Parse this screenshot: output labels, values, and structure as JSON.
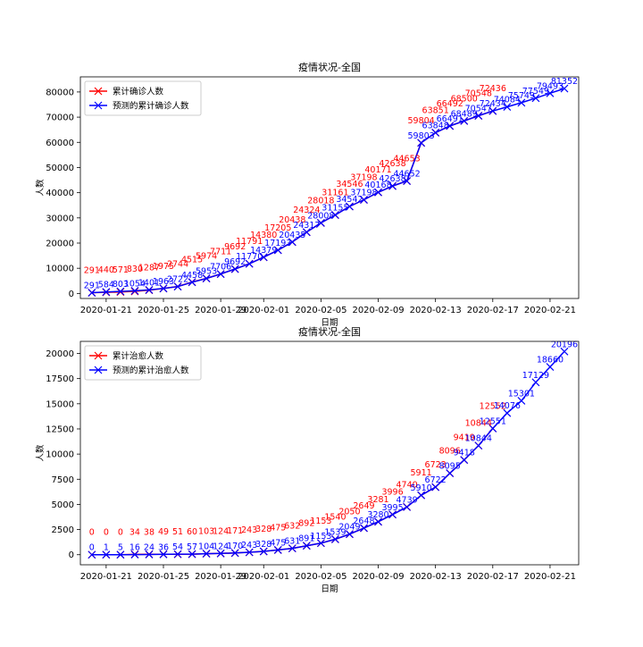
{
  "chart_data": [
    {
      "type": "line",
      "title": "疫情状况-全国",
      "xlabel": "日期",
      "ylabel": "人数",
      "ylim": [
        -2000,
        86000
      ],
      "yticks": [
        0,
        10000,
        20000,
        30000,
        40000,
        50000,
        60000,
        70000,
        80000
      ],
      "xtick_labels": [
        "2020-01-21",
        "2020-01-25",
        "2020-01-29",
        "2020-02-01",
        "2020-02-05",
        "2020-02-09",
        "2020-02-13",
        "2020-02-17",
        "2020-02-21"
      ],
      "grid": false,
      "legend_position": "top-left",
      "series": [
        {
          "name": "累计确诊人数",
          "color": "#ff0000",
          "marker": "x",
          "dates": [
            "2020-01-20",
            "2020-01-21",
            "2020-01-22",
            "2020-01-23",
            "2020-01-24",
            "2020-01-25",
            "2020-01-26",
            "2020-01-27",
            "2020-01-28",
            "2020-01-29",
            "2020-01-30",
            "2020-01-31",
            "2020-02-01",
            "2020-02-02",
            "2020-02-03",
            "2020-02-04",
            "2020-02-05",
            "2020-02-06",
            "2020-02-07",
            "2020-02-08",
            "2020-02-09",
            "2020-02-10",
            "2020-02-11",
            "2020-02-12",
            "2020-02-13",
            "2020-02-14",
            "2020-02-15",
            "2020-02-16",
            "2020-02-17"
          ],
          "values": [
            291,
            440,
            571,
            830,
            1287,
            1975,
            2744,
            4515,
            5974,
            7711,
            9692,
            11791,
            14380,
            17205,
            20438,
            24324,
            28018,
            31161,
            34546,
            37198,
            40171,
            42638,
            44653,
            59804,
            63851,
            66492,
            68500,
            70548,
            72436
          ],
          "labels": [
            "291",
            "440",
            "571",
            "830",
            "1287",
            "1975",
            "2744",
            "4515",
            "5974",
            "7711",
            "9692",
            "11791",
            "14380",
            "17205",
            "20438",
            "24324",
            "28018",
            "31161",
            "34546",
            "37198",
            "40171",
            "42638",
            "44653",
            "59804",
            "63851",
            "66492",
            "68500",
            "70548",
            "72436"
          ]
        },
        {
          "name": "预测的累计确诊人数",
          "color": "#0000ff",
          "marker": "x",
          "dates": [
            "2020-01-20",
            "2020-01-21",
            "2020-01-22",
            "2020-01-23",
            "2020-01-24",
            "2020-01-25",
            "2020-01-26",
            "2020-01-27",
            "2020-01-28",
            "2020-01-29",
            "2020-01-30",
            "2020-01-31",
            "2020-02-01",
            "2020-02-02",
            "2020-02-03",
            "2020-02-04",
            "2020-02-05",
            "2020-02-06",
            "2020-02-07",
            "2020-02-08",
            "2020-02-09",
            "2020-02-10",
            "2020-02-11",
            "2020-02-12",
            "2020-02-13",
            "2020-02-14",
            "2020-02-15",
            "2020-02-16",
            "2020-02-17",
            "2020-02-18",
            "2020-02-19",
            "2020-02-20",
            "2020-02-21",
            "2020-02-22"
          ],
          "values": [
            291,
            584,
            803,
            1054,
            1401,
            1963,
            2722,
            4458,
            5953,
            7706,
            9692,
            11770,
            14379,
            17193,
            20435,
            24317,
            28008,
            31155,
            34542,
            37198,
            40168,
            42638,
            44652,
            59803,
            63848,
            66491,
            68489,
            70547,
            72434,
            74084,
            75749,
            77549,
            79493,
            81352
          ],
          "labels": [
            "291",
            "584",
            "803",
            "1054",
            "1401",
            "1963",
            "2722",
            "4458",
            "5953",
            "7706",
            "9692",
            "11770",
            "14379",
            "17193",
            "20435",
            "24317",
            "28008",
            "31155",
            "34542",
            "37198",
            "40168",
            "42638",
            "44652",
            "59803",
            "63848",
            "66491",
            "68489",
            "70547",
            "72434",
            "74084",
            "75749",
            "77549",
            "79493",
            "81352"
          ]
        }
      ]
    },
    {
      "type": "line",
      "title": "疫情状况-全国",
      "xlabel": "日期",
      "ylabel": "人数",
      "ylim": [
        -1000,
        21200
      ],
      "yticks": [
        0,
        2500,
        5000,
        7500,
        10000,
        12500,
        15000,
        17500,
        20000
      ],
      "ytick_labels": [
        "0",
        "2500",
        "5000",
        "7500",
        "10000",
        "12500",
        "15000",
        "17500",
        "20000"
      ],
      "xtick_labels": [
        "2020-01-21",
        "2020-01-25",
        "2020-01-29",
        "2020-02-01",
        "2020-02-05",
        "2020-02-09",
        "2020-02-13",
        "2020-02-17",
        "2020-02-21"
      ],
      "grid": false,
      "legend_position": "top-left",
      "series": [
        {
          "name": "累计治愈人数",
          "color": "#ff0000",
          "marker": "x",
          "dates": [
            "2020-01-20",
            "2020-01-21",
            "2020-01-22",
            "2020-01-23",
            "2020-01-24",
            "2020-01-25",
            "2020-01-26",
            "2020-01-27",
            "2020-01-28",
            "2020-01-29",
            "2020-01-30",
            "2020-01-31",
            "2020-02-01",
            "2020-02-02",
            "2020-02-03",
            "2020-02-04",
            "2020-02-05",
            "2020-02-06",
            "2020-02-07",
            "2020-02-08",
            "2020-02-09",
            "2020-02-10",
            "2020-02-11",
            "2020-02-12",
            "2020-02-13",
            "2020-02-14",
            "2020-02-15",
            "2020-02-16",
            "2020-02-17"
          ],
          "values": [
            0,
            0,
            0,
            34,
            38,
            49,
            51,
            60,
            103,
            124,
            171,
            243,
            328,
            475,
            632,
            892,
            1153,
            1540,
            2050,
            2649,
            3281,
            3996,
            4740,
            5911,
            6723,
            8096,
            9419,
            10844,
            12552
          ],
          "labels": [
            "0",
            "0",
            "0",
            "34",
            "38",
            "49",
            "51",
            "60",
            "103",
            "124",
            "171",
            "243",
            "328",
            "475",
            "632",
            "892",
            "1153",
            "1540",
            "2050",
            "2649",
            "3281",
            "3996",
            "4740",
            "5911",
            "6723",
            "8096",
            "9419",
            "10844",
            "12552"
          ]
        },
        {
          "name": "预测的累计治愈人数",
          "color": "#0000ff",
          "marker": "x",
          "dates": [
            "2020-01-20",
            "2020-01-21",
            "2020-01-22",
            "2020-01-23",
            "2020-01-24",
            "2020-01-25",
            "2020-01-26",
            "2020-01-27",
            "2020-01-28",
            "2020-01-29",
            "2020-01-30",
            "2020-01-31",
            "2020-02-01",
            "2020-02-02",
            "2020-02-03",
            "2020-02-04",
            "2020-02-05",
            "2020-02-06",
            "2020-02-07",
            "2020-02-08",
            "2020-02-09",
            "2020-02-10",
            "2020-02-11",
            "2020-02-12",
            "2020-02-13",
            "2020-02-14",
            "2020-02-15",
            "2020-02-16",
            "2020-02-17",
            "2020-02-18",
            "2020-02-19",
            "2020-02-20",
            "2020-02-21",
            "2020-02-22"
          ],
          "values": [
            0,
            1,
            5,
            16,
            24,
            36,
            54,
            57,
            104,
            124,
            170,
            243,
            328,
            475,
            631,
            891,
            1153,
            1539,
            2049,
            2648,
            3280,
            3995,
            4739,
            5910,
            6722,
            8095,
            9418,
            10844,
            12551,
            14076,
            15301,
            17129,
            18660,
            20196
          ],
          "labels": [
            "0",
            "1",
            "5",
            "16",
            "24",
            "36",
            "54",
            "57",
            "104",
            "124",
            "170",
            "243",
            "328",
            "475",
            "631",
            "891",
            "1153",
            "1539",
            "2049",
            "2648",
            "3280",
            "3995",
            "4739",
            "5910",
            "6722",
            "8095",
            "9418",
            "10844",
            "12551",
            "14076",
            "15301",
            "17129",
            "18660",
            "20196"
          ]
        }
      ]
    }
  ]
}
